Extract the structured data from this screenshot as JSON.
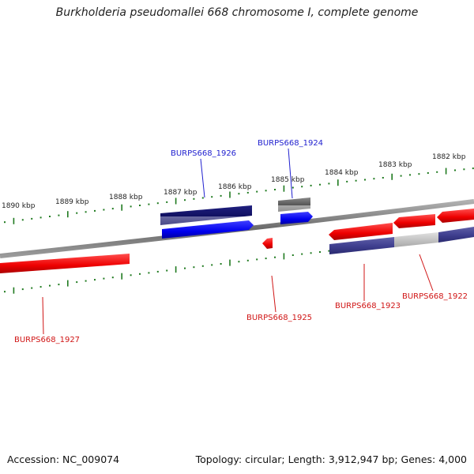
{
  "title": "Burkholderia pseudomallei 668 chromosome I, complete genome",
  "footer": {
    "accession": "Accession: NC_009074",
    "summary": "Topology: circular; Length: 3,912,947 bp; Genes: 4,000"
  },
  "kbp_ticks": [
    "1890 kbp",
    "1889 kbp",
    "1888 kbp",
    "1887 kbp",
    "1886 kbp",
    "1885 kbp",
    "1884 kbp",
    "1883 kbp",
    "1882 kbp"
  ],
  "gene_labels": {
    "burps1926": "BURPS668_1926",
    "burps1924": "BURPS668_1924",
    "burps1927": "BURPS668_1927",
    "burps1925": "BURPS668_1925",
    "burps1923": "BURPS668_1923",
    "burps1922": "BURPS668_1922"
  },
  "colors": {
    "backbone": "#808080",
    "tick": "#1f7a1f",
    "forward_gene": "#0000ee",
    "reverse_gene": "#ee1111",
    "forward_cds": "#1a1a80",
    "reverse_cds": "#404090",
    "grey_feature": "#606060"
  }
}
